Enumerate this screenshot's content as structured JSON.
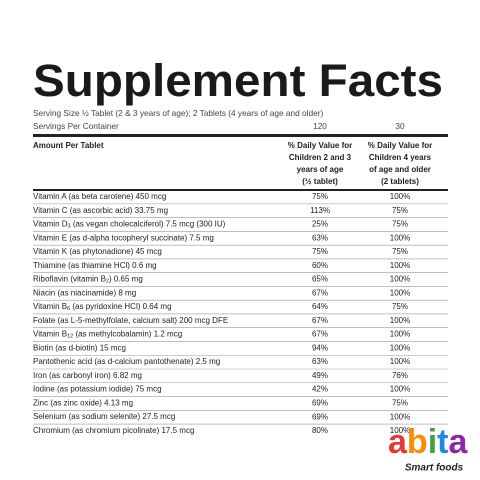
{
  "title": "Supplement Facts",
  "serving_size": "Serving Size ½ Tablet (2 & 3 years of age); 2 Tablets (4 years of age and older)",
  "servings_per_container": {
    "label": "Servings Per Container",
    "values": [
      "120",
      "30"
    ]
  },
  "table": {
    "header": {
      "amount": "Amount Per Tablet",
      "columns": [
        [
          "% Daily Value for",
          "Children 2 and 3",
          "years of age",
          "(½ tablet)"
        ],
        [
          "% Daily Value for",
          "Children 4 years",
          "of age and older",
          "(2 tablets)"
        ]
      ]
    },
    "rows": [
      {
        "label": "Vitamin A (as beta carotene) 450 mcg",
        "values": [
          "75%",
          "100%"
        ]
      },
      {
        "label": "Vitamin C (as ascorbic acid) 33.75 mg",
        "values": [
          "113%",
          "75%"
        ]
      },
      {
        "label": "Vitamin D",
        "sub": "3",
        "after": " (as vegan cholecalciferol) 7.5 mcg (300 IU)",
        "values": [
          "25%",
          "75%"
        ]
      },
      {
        "label": "Vitamin E (as d-alpha tocopheryl succinate) 7.5 mg",
        "values": [
          "63%",
          "100%"
        ]
      },
      {
        "label": "Vitamin K (as phytonadione) 45 mcg",
        "values": [
          "75%",
          "75%"
        ]
      },
      {
        "label": "Thiamine (as thiamine HCl) 0.6 mg",
        "values": [
          "60%",
          "100%"
        ]
      },
      {
        "label": "Riboflavin (vitamin B",
        "sub": "2",
        "after": ") 0.65 mg",
        "values": [
          "65%",
          "100%"
        ]
      },
      {
        "label": "Niacin (as niacinamide) 8 mg",
        "values": [
          "67%",
          "100%"
        ]
      },
      {
        "label": "Vitamin B",
        "sub": "6",
        "after": " (as pyridoxine HCl) 0.64 mg",
        "values": [
          "64%",
          "75%"
        ]
      },
      {
        "label": "Folate (as L-5-methylfolate, calcium salt) 200 mcg DFE",
        "values": [
          "67%",
          "100%"
        ]
      },
      {
        "label": "Vitamin B",
        "sub": "12",
        "after": " (as methylcobalamin) 1.2 mcg",
        "values": [
          "67%",
          "100%"
        ]
      },
      {
        "label": "Biotin (as d-biotin) 15 mcg",
        "values": [
          "94%",
          "100%"
        ]
      },
      {
        "label": "Pantothenic acid (as d-calcium pantothenate) 2.5 mg",
        "values": [
          "63%",
          "100%"
        ]
      },
      {
        "label": "Iron (as carbonyl iron) 6.82 mg",
        "values": [
          "49%",
          "76%"
        ]
      },
      {
        "label": "Iodine (as potassium iodide) 75 mcg",
        "values": [
          "42%",
          "100%"
        ]
      },
      {
        "label": "Zinc (as zinc oxide) 4.13 mg",
        "values": [
          "69%",
          "75%"
        ]
      },
      {
        "label": "Selenium (as sodium selenite) 27.5 mcg",
        "values": [
          "69%",
          "100%"
        ]
      },
      {
        "label": "Chromium (as chromium picolinate) 17.5 mcg",
        "values": [
          "80%",
          "100%"
        ]
      }
    ]
  },
  "logo": {
    "name": "abita",
    "tagline": "Smart foods"
  }
}
